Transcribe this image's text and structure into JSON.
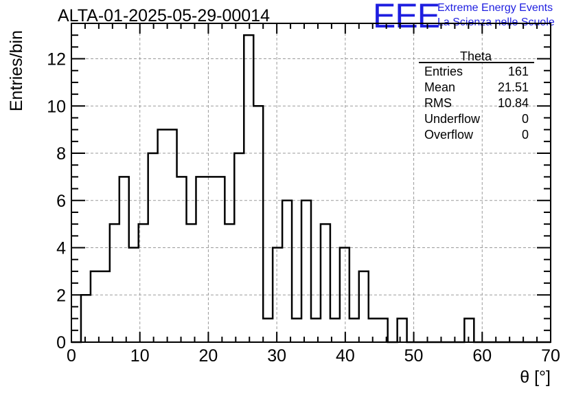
{
  "header": {
    "title": "ALTA-01-2025-05-29-00014",
    "logo_text": "EEE",
    "logo_line1": "Extreme Energy Events",
    "logo_line2": "La Scienza nelle Scuole"
  },
  "stats_box": {
    "name": "Theta",
    "rows": [
      {
        "label": "Entries",
        "value": "161"
      },
      {
        "label": "Mean",
        "value": "21.51"
      },
      {
        "label": "RMS",
        "value": "10.84"
      },
      {
        "label": "Underflow",
        "value": "0"
      },
      {
        "label": "Overflow",
        "value": "0"
      }
    ]
  },
  "colors": {
    "line": "#000000",
    "grid": "#9a9a9a",
    "logo": "#1e1ee0"
  },
  "chart_data": {
    "type": "bar",
    "style": "step-histogram",
    "title": "ALTA-01-2025-05-29-00014",
    "xlabel": "θ [°]",
    "ylabel": "Entries/bin",
    "xlim": [
      0,
      70
    ],
    "ylim": [
      0,
      13.5
    ],
    "grid": true,
    "xticks": [
      0,
      10,
      20,
      30,
      40,
      50,
      60,
      70
    ],
    "yticks": [
      0,
      2,
      4,
      6,
      8,
      10,
      12
    ],
    "bin_width": 1.4,
    "bin_low_edges": [
      0,
      1.4,
      2.8,
      4.2,
      5.6,
      7.0,
      8.4,
      9.8,
      11.2,
      12.6,
      14.0,
      15.4,
      16.8,
      18.2,
      19.6,
      21.0,
      22.4,
      23.8,
      25.2,
      26.6,
      28.0,
      29.4,
      30.8,
      32.2,
      33.6,
      35.0,
      36.4,
      37.8,
      39.2,
      40.6,
      42.0,
      43.4,
      44.8,
      46.2,
      47.6,
      49.0,
      50.4,
      51.8,
      53.2,
      54.6,
      56.0,
      57.4,
      58.8,
      60.2,
      61.6,
      63.0,
      64.4,
      65.8,
      67.2,
      68.6
    ],
    "values": [
      0,
      2,
      3,
      3,
      5,
      7,
      4,
      5,
      8,
      9,
      9,
      7,
      5,
      7,
      7,
      7,
      5,
      8,
      13,
      10,
      1,
      4,
      6,
      1,
      6,
      1,
      5,
      1,
      4,
      1,
      3,
      1,
      1,
      0,
      1,
      0,
      0,
      0,
      0,
      0,
      0,
      1,
      0,
      0,
      0,
      0,
      0,
      0,
      0,
      0
    ]
  }
}
